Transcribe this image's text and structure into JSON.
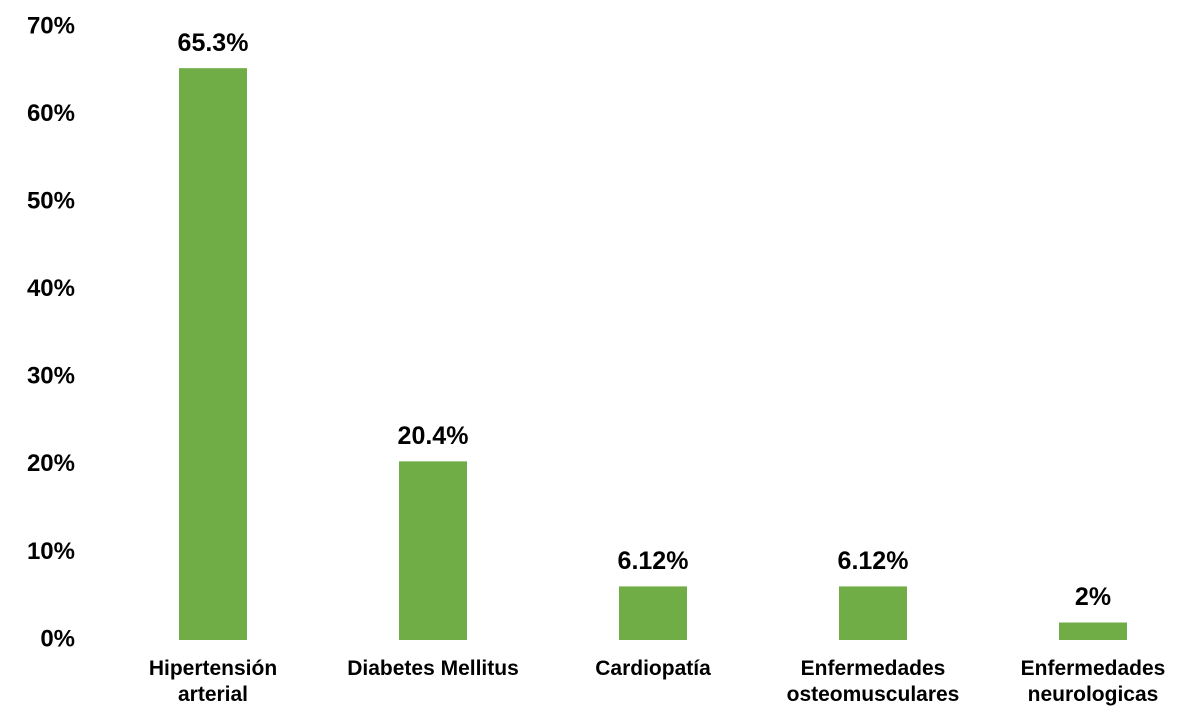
{
  "chart_data": {
    "type": "bar",
    "categories": [
      "Hipertensión arterial",
      "Diabetes Mellitus",
      "Cardiopatía",
      "Enfermedades osteomusculares",
      "Enfermedades neurologicas"
    ],
    "values": [
      65.3,
      20.4,
      6.12,
      6.12,
      2
    ],
    "value_labels": [
      "65.3%",
      "20.4%",
      "6.12%",
      "6.12%",
      "2%"
    ],
    "color": "#70ad47",
    "ylim": [
      0,
      70
    ],
    "yticks": [
      {
        "value": 0,
        "label": "0%"
      },
      {
        "value": 10,
        "label": "10%"
      },
      {
        "value": 20,
        "label": "20%"
      },
      {
        "value": 30,
        "label": "30%"
      },
      {
        "value": 40,
        "label": "40%"
      },
      {
        "value": 50,
        "label": "50%"
      },
      {
        "value": 60,
        "label": "60%"
      },
      {
        "value": 70,
        "label": "70%"
      }
    ],
    "grid": false
  }
}
